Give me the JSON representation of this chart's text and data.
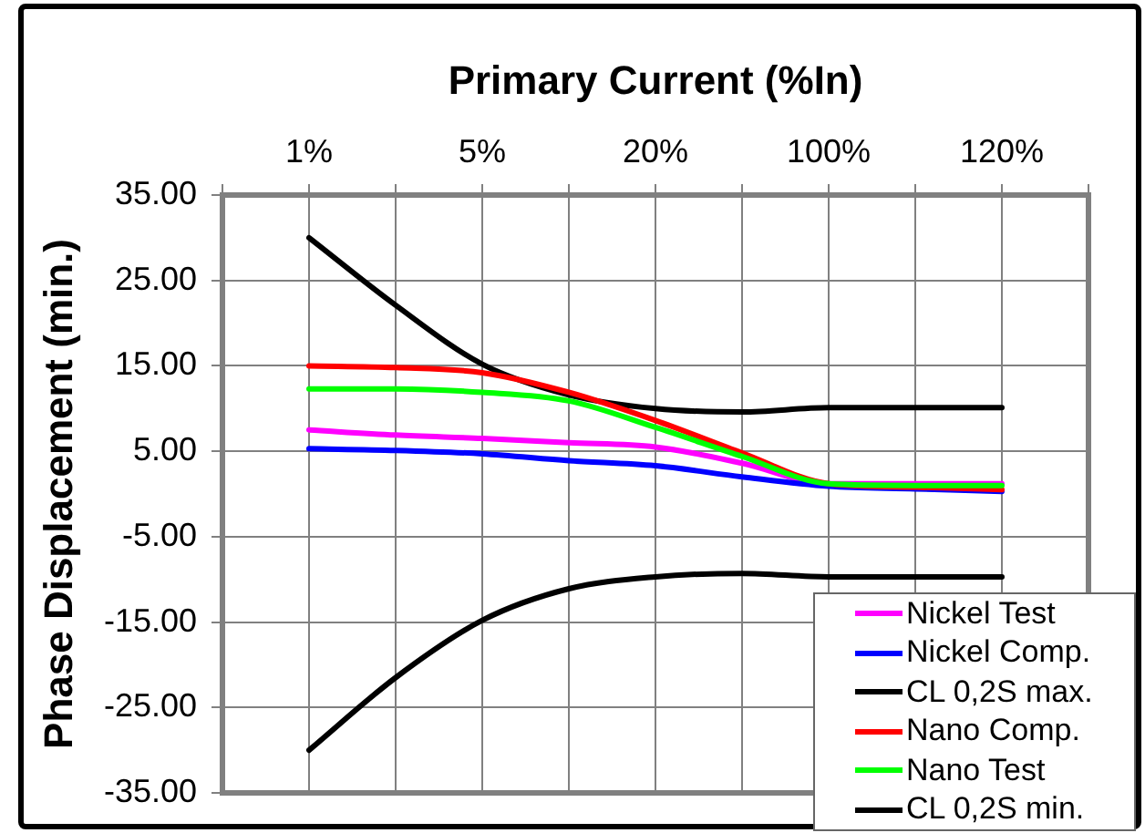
{
  "chart_data": {
    "type": "line",
    "xlabel": "Primary Current (%In)",
    "ylabel": "Phase Displacement (min.)",
    "categories": [
      null,
      "1%",
      null,
      "5%",
      null,
      "20%",
      null,
      "100%",
      null,
      "120%",
      null
    ],
    "series": [
      {
        "name": "Nickel Test",
        "color": "#ff00ff",
        "values": [
          null,
          7.5,
          6.9,
          6.5,
          6.0,
          5.5,
          3.6,
          1.2,
          1.2,
          1.2,
          null
        ]
      },
      {
        "name": "Nickel Comp.",
        "color": "#0000ff",
        "values": [
          null,
          5.3,
          5.1,
          4.7,
          3.9,
          3.3,
          2.0,
          0.9,
          0.6,
          0.3,
          null
        ]
      },
      {
        "name": "CL 0,2S max.",
        "color": "#000000",
        "values": [
          null,
          30,
          22.1,
          15.2,
          11.6,
          10.0,
          9.6,
          10.1,
          10.1,
          10.1,
          null
        ]
      },
      {
        "name": "Nano Comp.",
        "color": "#ff0000",
        "values": [
          null,
          15,
          14.8,
          14.2,
          11.9,
          8.6,
          4.8,
          1.2,
          0.8,
          0.5,
          null
        ]
      },
      {
        "name": "Nano Test",
        "color": "#00ff00",
        "values": [
          null,
          12.3,
          12.3,
          11.9,
          10.9,
          7.8,
          4.4,
          1.2,
          1.0,
          1.0,
          null
        ]
      },
      {
        "name": "CL 0,2S min.",
        "color": "#000000",
        "values": [
          null,
          -30,
          -21.5,
          -14.8,
          -11.1,
          -9.7,
          -9.3,
          -9.7,
          -9.7,
          -9.7,
          null
        ]
      }
    ],
    "ylim": [
      -35,
      35
    ],
    "yticks": [
      {
        "value": -35,
        "label": "-35.00"
      },
      {
        "value": -25,
        "label": "-25.00"
      },
      {
        "value": -15,
        "label": "-15.00"
      },
      {
        "value": -5,
        "label": "-5.00"
      },
      {
        "value": 5,
        "label": "5.00"
      },
      {
        "value": 15,
        "label": "15.00"
      },
      {
        "value": 25,
        "label": "25.00"
      },
      {
        "value": 35,
        "label": "35.00"
      }
    ],
    "grid": true,
    "legend": "bottom right"
  }
}
